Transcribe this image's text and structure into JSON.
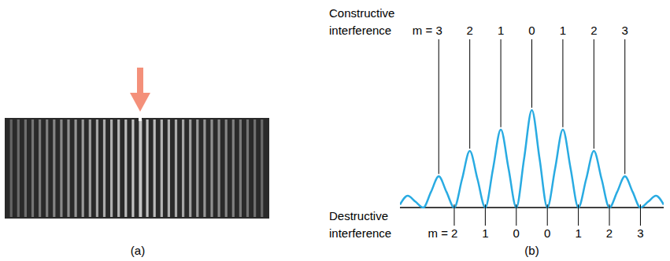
{
  "chart_data": {
    "type": "line",
    "x": [
      -4.25,
      -4,
      -3.75,
      -3.5,
      -3.25,
      -3,
      -2.75,
      -2.5,
      -2.25,
      -2,
      -1.75,
      -1.5,
      -1.25,
      -1,
      -0.75,
      -0.5,
      -0.25,
      0,
      0.25,
      0.5,
      0.75,
      1,
      1.25,
      1.5,
      1.75,
      2,
      2.25,
      2.5,
      2.75,
      3,
      3.25,
      3.5,
      3.75,
      4,
      4.25
    ],
    "values": [
      0.03,
      0.12,
      0.06,
      0,
      0.16,
      0.32,
      0.16,
      0,
      0.29,
      0.58,
      0.29,
      0,
      0.4,
      0.8,
      0.4,
      0,
      0.5,
      1,
      0.5,
      0,
      0.4,
      0.8,
      0.4,
      0,
      0.29,
      0.58,
      0.29,
      0,
      0.16,
      0.32,
      0.16,
      0,
      0.06,
      0.12,
      0.03
    ],
    "color": "#29abe2",
    "xlim": [
      -4.25,
      4.25
    ],
    "ylim": [
      0,
      1
    ],
    "tick_labels": false,
    "grid": false,
    "panel_label": "(b)",
    "constructive": {
      "title": "Constructive interference",
      "labels": [
        {
          "x": -3,
          "text": "m = 3"
        },
        {
          "x": -2,
          "text": "2"
        },
        {
          "x": -1,
          "text": "1"
        },
        {
          "x": 0,
          "text": "0"
        },
        {
          "x": 1,
          "text": "1"
        },
        {
          "x": 2,
          "text": "2"
        },
        {
          "x": 3,
          "text": "3"
        }
      ]
    },
    "destructive": {
      "title": "Destructive interference",
      "labels": [
        {
          "x": -2.5,
          "text": "m = 2"
        },
        {
          "x": -1.5,
          "text": "1"
        },
        {
          "x": -0.5,
          "text": "0"
        },
        {
          "x": 0.5,
          "text": "0"
        },
        {
          "x": 1.5,
          "text": "1"
        },
        {
          "x": 2.5,
          "text": "2"
        },
        {
          "x": 3.5,
          "text": "3"
        }
      ]
    }
  },
  "panel_a": {
    "label": "(a)"
  }
}
